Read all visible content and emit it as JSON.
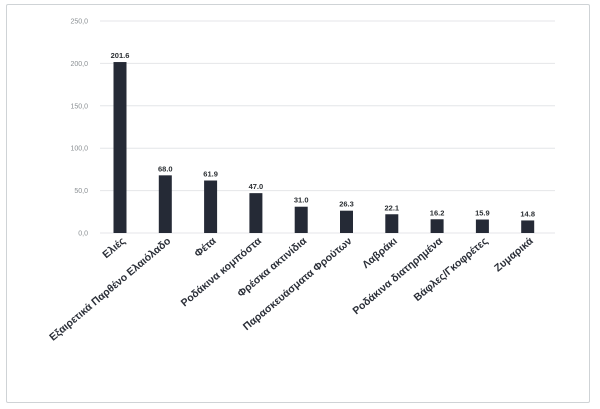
{
  "chart_data": {
    "type": "bar",
    "title": "",
    "xlabel": "",
    "ylabel": "",
    "ylim": [
      0,
      250
    ],
    "yticks": [
      0,
      50,
      100,
      150,
      200,
      250
    ],
    "ytick_labels": [
      "0,0",
      "50,0",
      "100,0",
      "150,0",
      "200,0",
      "250,0"
    ],
    "grid": true,
    "legend": "none",
    "bar_color": "#252a36",
    "categories": [
      "Ελιές",
      "Εξαιρετικά Παρθένο Ελαιόλαδο",
      "Φέτα",
      "Ροδάκινα κομπόστα",
      "Φρέσκα ακτινίδια",
      "Παρασκευάσματα Φρούτων",
      "Λαβράκι",
      "Ροδάκινα διατηρημένα",
      "Βάφλες/Γκοφρέτες",
      "Ζυμαρικά"
    ],
    "values": [
      201.6,
      68.0,
      61.9,
      47.0,
      31.0,
      26.3,
      22.1,
      16.2,
      15.9,
      14.8
    ],
    "value_labels": [
      "201.6",
      "68.0",
      "61.9",
      "47.0",
      "31.0",
      "26.3",
      "22.1",
      "16.2",
      "15.9",
      "14.8"
    ]
  }
}
